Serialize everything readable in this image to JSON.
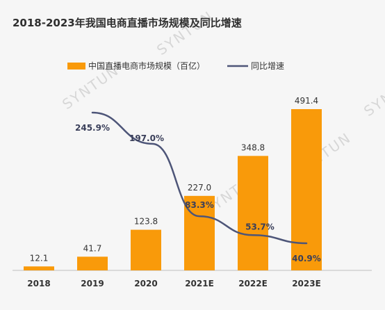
{
  "chart_data": {
    "type": "bar",
    "title": "2018-2023年我国电商直播市场规模及同比增速",
    "categories": [
      "2018",
      "2019",
      "2020",
      "2021E",
      "2022E",
      "2023E"
    ],
    "series": [
      {
        "name": "中国直播电商市场规模（百亿）",
        "type": "bar",
        "color": "#f99a0a",
        "values": [
          12.1,
          41.7,
          123.8,
          227.0,
          348.8,
          491.4
        ],
        "value_labels": [
          "12.1",
          "41.7",
          "123.8",
          "227.0",
          "348.8",
          "491.4"
        ]
      },
      {
        "name": "同比增速",
        "type": "line",
        "color": "#4d5578",
        "values": [
          null,
          245.9,
          197.0,
          83.3,
          53.7,
          40.9
        ],
        "value_labels": [
          "",
          "245.9%",
          "197.0%",
          "83.3%",
          "53.7%",
          "40.9%"
        ]
      }
    ],
    "ylim_bar": [
      0,
      500
    ],
    "ylim_line": [
      0,
      300
    ],
    "legend_position": "top",
    "grid": false,
    "watermark": "SYNTUN"
  }
}
